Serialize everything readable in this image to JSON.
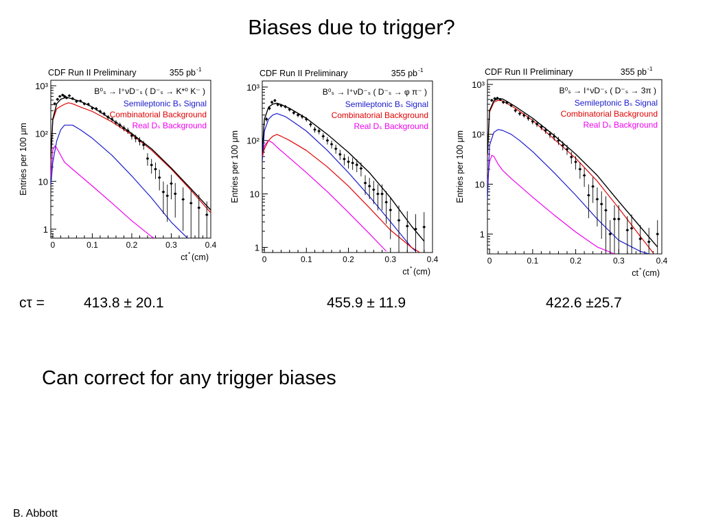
{
  "slide": {
    "title": "Biases due to trigger?",
    "ctau_label": "cτ =",
    "ctau_values": [
      "413.8 ± 20.1",
      "455.9 ± 11.9",
      "422.6 ±25.7"
    ],
    "statement": "Can correct for any trigger biases",
    "author": "B. Abbott"
  },
  "chart_data": [
    {
      "type": "scatter",
      "header_left": "CDF Run II Preliminary",
      "header_right": "355 pb",
      "header_right_sup": "-1",
      "decay": "B⁰ₛ → l⁺νD⁻ₛ ( D⁻ₛ → K*⁰ K⁻ )",
      "ylabel": "Entries per 100 μm",
      "xlabel": "ct",
      "xlabel_sup": "*",
      "xlabel_unit": "(cm)",
      "yscale": "log",
      "xlim": [
        -0.005,
        0.4
      ],
      "ylim": [
        0.65,
        1300
      ],
      "xticks": [
        0,
        0.1,
        0.2,
        0.3,
        0.4
      ],
      "xtick_labels": [
        "0",
        "0.1",
        "0.2",
        "0.3",
        "0.4"
      ],
      "yticks": [
        1,
        10,
        100,
        1000
      ],
      "ytick_labels": [
        "1",
        "10",
        "10²",
        "10³"
      ],
      "legend": [
        "Semileptonic Bₛ Signal",
        "Combinatorial Background",
        "Real Dₛ Background"
      ],
      "colors": {
        "total": "#000000",
        "signal": "#1a1acc",
        "combinatorial": "#e00000",
        "real_ds": "#ee00ee"
      },
      "series": [
        {
          "key": "total",
          "x": [
            -0.005,
            0.0,
            0.01,
            0.02,
            0.03,
            0.04,
            0.05,
            0.07,
            0.1,
            0.15,
            0.2,
            0.25,
            0.3,
            0.35,
            0.4
          ],
          "y": [
            30,
            200,
            420,
            520,
            560,
            560,
            530,
            470,
            360,
            195,
            100,
            48,
            19,
            7,
            2.5
          ]
        },
        {
          "key": "combinatorial",
          "x": [
            -0.005,
            0.0,
            0.01,
            0.02,
            0.03,
            0.04,
            0.05,
            0.07,
            0.1,
            0.15,
            0.2,
            0.25,
            0.3,
            0.35,
            0.4
          ],
          "y": [
            28,
            190,
            330,
            370,
            410,
            440,
            420,
            360,
            290,
            175,
            95,
            45,
            18,
            6.5,
            2.2
          ]
        },
        {
          "key": "signal",
          "x": [
            -0.005,
            0.0,
            0.01,
            0.02,
            0.03,
            0.05,
            0.07,
            0.1,
            0.15,
            0.2,
            0.25,
            0.3,
            0.33,
            0.35
          ],
          "y": [
            8,
            25,
            70,
            120,
            150,
            150,
            120,
            80,
            35,
            13,
            4.5,
            1.4,
            0.8,
            0.55
          ]
        },
        {
          "key": "real_ds",
          "x": [
            -0.005,
            0.0,
            0.005,
            0.01,
            0.02,
            0.03,
            0.05,
            0.1,
            0.15,
            0.2,
            0.25,
            0.28
          ],
          "y": [
            12,
            45,
            55,
            50,
            35,
            25,
            18,
            8,
            3.5,
            1.5,
            0.7,
            0.5
          ]
        }
      ],
      "points": [
        {
          "x": 0.005,
          "y": 420
        },
        {
          "x": 0.012,
          "y": 520
        },
        {
          "x": 0.018,
          "y": 600
        },
        {
          "x": 0.025,
          "y": 640
        },
        {
          "x": 0.03,
          "y": 600
        },
        {
          "x": 0.035,
          "y": 560
        },
        {
          "x": 0.042,
          "y": 620
        },
        {
          "x": 0.05,
          "y": 540
        },
        {
          "x": 0.06,
          "y": 470
        },
        {
          "x": 0.07,
          "y": 480
        },
        {
          "x": 0.08,
          "y": 420
        },
        {
          "x": 0.09,
          "y": 410
        },
        {
          "x": 0.1,
          "y": 340
        },
        {
          "x": 0.11,
          "y": 330
        },
        {
          "x": 0.12,
          "y": 290
        },
        {
          "x": 0.13,
          "y": 260
        },
        {
          "x": 0.14,
          "y": 220
        },
        {
          "x": 0.15,
          "y": 200
        },
        {
          "x": 0.16,
          "y": 170
        },
        {
          "x": 0.17,
          "y": 150
        },
        {
          "x": 0.18,
          "y": 130
        },
        {
          "x": 0.19,
          "y": 115
        },
        {
          "x": 0.2,
          "y": 90
        },
        {
          "x": 0.21,
          "y": 80
        },
        {
          "x": 0.22,
          "y": 70
        },
        {
          "x": 0.23,
          "y": 58
        },
        {
          "x": 0.24,
          "y": 30
        },
        {
          "x": 0.25,
          "y": 22
        },
        {
          "x": 0.26,
          "y": 18
        },
        {
          "x": 0.27,
          "y": 12
        },
        {
          "x": 0.28,
          "y": 6
        },
        {
          "x": 0.29,
          "y": 5
        },
        {
          "x": 0.3,
          "y": 9
        },
        {
          "x": 0.31,
          "y": 5.5
        },
        {
          "x": 0.33,
          "y": 4.2
        },
        {
          "x": 0.35,
          "y": 3.5
        },
        {
          "x": 0.37,
          "y": 2.8
        },
        {
          "x": 0.39,
          "y": 2
        }
      ]
    },
    {
      "type": "scatter",
      "header_left": "CDF Run II Preliminary",
      "header_right": "355 pb",
      "header_right_sup": "-1",
      "decay": "B⁰ₛ → l⁺νD⁻ₛ ( D⁻ₛ → φ π⁻ )",
      "ylabel": "Entries per 100 μm",
      "xlabel": "ct",
      "xlabel_sup": "*",
      "xlabel_unit": "(cm)",
      "yscale": "log",
      "xlim": [
        -0.005,
        0.4
      ],
      "ylim": [
        0.8,
        1300
      ],
      "xticks": [
        0,
        0.1,
        0.2,
        0.3,
        0.4
      ],
      "xtick_labels": [
        "0",
        "0.1",
        "0.2",
        "0.3",
        "0.4"
      ],
      "yticks": [
        1,
        10,
        100,
        1000
      ],
      "ytick_labels": [
        "1",
        "10",
        "10²",
        "10³"
      ],
      "legend": [
        "Semileptonic Bₛ Signal",
        "Combinatorial Background",
        "Real Dₛ Background"
      ],
      "colors": {
        "total": "#000000",
        "signal": "#1a1acc",
        "combinatorial": "#e00000",
        "real_ds": "#ee00ee"
      },
      "series": [
        {
          "key": "total",
          "x": [
            -0.005,
            0.0,
            0.01,
            0.02,
            0.03,
            0.04,
            0.06,
            0.1,
            0.15,
            0.2,
            0.25,
            0.3,
            0.35,
            0.38
          ],
          "y": [
            60,
            250,
            420,
            480,
            500,
            470,
            400,
            260,
            130,
            60,
            25,
            8.5,
            2.5,
            1.3
          ]
        },
        {
          "key": "combinatorial",
          "x": [
            -0.005,
            0.0,
            0.01,
            0.02,
            0.03,
            0.04,
            0.06,
            0.1,
            0.15,
            0.2,
            0.25,
            0.3,
            0.35,
            0.37
          ],
          "y": [
            50,
            70,
            100,
            120,
            130,
            120,
            100,
            65,
            32,
            14,
            5.5,
            2.1,
            1.0,
            0.8
          ]
        },
        {
          "key": "signal",
          "x": [
            -0.005,
            0.0,
            0.01,
            0.02,
            0.03,
            0.05,
            0.07,
            0.1,
            0.15,
            0.2,
            0.25,
            0.3,
            0.35,
            0.36
          ],
          "y": [
            40,
            150,
            250,
            300,
            320,
            280,
            220,
            150,
            65,
            25,
            9,
            3,
            1.0,
            0.85
          ]
        },
        {
          "key": "real_ds",
          "x": [
            -0.005,
            0.0,
            0.01,
            0.02,
            0.03,
            0.05,
            0.1,
            0.15,
            0.2,
            0.25,
            0.29
          ],
          "y": [
            45,
            80,
            100,
            90,
            75,
            55,
            25,
            11,
            4.5,
            1.8,
            0.85
          ]
        }
      ],
      "points": [
        {
          "x": 0.005,
          "y": 250
        },
        {
          "x": 0.012,
          "y": 400
        },
        {
          "x": 0.018,
          "y": 520
        },
        {
          "x": 0.025,
          "y": 560
        },
        {
          "x": 0.032,
          "y": 470
        },
        {
          "x": 0.04,
          "y": 450
        },
        {
          "x": 0.05,
          "y": 430
        },
        {
          "x": 0.06,
          "y": 380
        },
        {
          "x": 0.07,
          "y": 330
        },
        {
          "x": 0.08,
          "y": 300
        },
        {
          "x": 0.09,
          "y": 280
        },
        {
          "x": 0.1,
          "y": 250
        },
        {
          "x": 0.11,
          "y": 200
        },
        {
          "x": 0.12,
          "y": 160
        },
        {
          "x": 0.13,
          "y": 150
        },
        {
          "x": 0.14,
          "y": 120
        },
        {
          "x": 0.15,
          "y": 100
        },
        {
          "x": 0.16,
          "y": 85
        },
        {
          "x": 0.17,
          "y": 70
        },
        {
          "x": 0.18,
          "y": 55
        },
        {
          "x": 0.19,
          "y": 45
        },
        {
          "x": 0.2,
          "y": 40
        },
        {
          "x": 0.21,
          "y": 38
        },
        {
          "x": 0.22,
          "y": 35
        },
        {
          "x": 0.23,
          "y": 30
        },
        {
          "x": 0.24,
          "y": 16
        },
        {
          "x": 0.25,
          "y": 14
        },
        {
          "x": 0.26,
          "y": 12
        },
        {
          "x": 0.27,
          "y": 10
        },
        {
          "x": 0.28,
          "y": 10
        },
        {
          "x": 0.29,
          "y": 7
        },
        {
          "x": 0.3,
          "y": 5
        },
        {
          "x": 0.32,
          "y": 3.2
        },
        {
          "x": 0.34,
          "y": 2.5
        },
        {
          "x": 0.36,
          "y": 2.2
        },
        {
          "x": 0.38,
          "y": 2.4
        }
      ]
    },
    {
      "type": "scatter",
      "header_left": "CDF Run II Preliminary",
      "header_right": "355 pb",
      "header_right_sup": "-1",
      "decay": "B⁰ₛ → l⁺νD⁻ₛ ( D⁻ₛ → 3π )",
      "ylabel": "Entries per 100 μm",
      "xlabel": "ct",
      "xlabel_sup": "*",
      "xlabel_unit": "(cm)",
      "yscale": "log",
      "xlim": [
        -0.005,
        0.4
      ],
      "ylim": [
        0.4,
        1250
      ],
      "xticks": [
        0,
        0.1,
        0.2,
        0.3,
        0.4
      ],
      "xtick_labels": [
        "0",
        "0.1",
        "0.2",
        "0.3",
        "0.4"
      ],
      "yticks": [
        1,
        10,
        100,
        1000
      ],
      "ytick_labels": [
        "1",
        "10",
        "10²",
        "10³"
      ],
      "legend": [
        "Semileptonic Bₛ Signal",
        "Combinatorial Background",
        "Real Dₛ Background"
      ],
      "colors": {
        "total": "#000000",
        "signal": "#1a1acc",
        "combinatorial": "#e00000",
        "real_ds": "#ee00ee"
      },
      "series": [
        {
          "key": "total",
          "x": [
            -0.005,
            0.0,
            0.01,
            0.02,
            0.03,
            0.04,
            0.06,
            0.1,
            0.15,
            0.2,
            0.25,
            0.3,
            0.35,
            0.39
          ],
          "y": [
            40,
            300,
            470,
            520,
            510,
            460,
            360,
            210,
            95,
            40,
            15,
            4.5,
            1.4,
            0.55
          ]
        },
        {
          "key": "combinatorial",
          "x": [
            -0.005,
            0.0,
            0.01,
            0.02,
            0.03,
            0.04,
            0.06,
            0.1,
            0.15,
            0.2,
            0.25,
            0.3,
            0.35,
            0.38
          ],
          "y": [
            35,
            280,
            440,
            480,
            470,
            420,
            330,
            190,
            80,
            33,
            11.5,
            3.3,
            0.9,
            0.42
          ]
        },
        {
          "key": "signal",
          "x": [
            -0.005,
            0.0,
            0.01,
            0.02,
            0.03,
            0.05,
            0.07,
            0.1,
            0.15,
            0.2,
            0.25,
            0.3,
            0.35,
            0.37
          ],
          "y": [
            5,
            60,
            110,
            125,
            120,
            100,
            75,
            45,
            17,
            6,
            2,
            0.75,
            0.45,
            0.4
          ]
        },
        {
          "key": "real_ds",
          "x": [
            -0.005,
            0.0,
            0.005,
            0.01,
            0.02,
            0.03,
            0.05,
            0.1,
            0.15,
            0.2,
            0.25,
            0.29
          ],
          "y": [
            10,
            28,
            38,
            36,
            25,
            19,
            13,
            5.5,
            2.4,
            1.1,
            0.55,
            0.4
          ]
        }
      ],
      "points": [
        {
          "x": 0.005,
          "y": 480
        },
        {
          "x": 0.012,
          "y": 520
        },
        {
          "x": 0.018,
          "y": 530
        },
        {
          "x": 0.025,
          "y": 500
        },
        {
          "x": 0.032,
          "y": 440
        },
        {
          "x": 0.04,
          "y": 430
        },
        {
          "x": 0.05,
          "y": 380
        },
        {
          "x": 0.06,
          "y": 300
        },
        {
          "x": 0.07,
          "y": 260
        },
        {
          "x": 0.08,
          "y": 240
        },
        {
          "x": 0.09,
          "y": 210
        },
        {
          "x": 0.1,
          "y": 180
        },
        {
          "x": 0.11,
          "y": 160
        },
        {
          "x": 0.12,
          "y": 140
        },
        {
          "x": 0.13,
          "y": 120
        },
        {
          "x": 0.14,
          "y": 100
        },
        {
          "x": 0.15,
          "y": 90
        },
        {
          "x": 0.16,
          "y": 75
        },
        {
          "x": 0.17,
          "y": 60
        },
        {
          "x": 0.18,
          "y": 50
        },
        {
          "x": 0.19,
          "y": 35
        },
        {
          "x": 0.2,
          "y": 28
        },
        {
          "x": 0.21,
          "y": 20
        },
        {
          "x": 0.22,
          "y": 15
        },
        {
          "x": 0.23,
          "y": 6
        },
        {
          "x": 0.24,
          "y": 9
        },
        {
          "x": 0.25,
          "y": 5
        },
        {
          "x": 0.26,
          "y": 4
        },
        {
          "x": 0.27,
          "y": 3
        },
        {
          "x": 0.28,
          "y": 1
        },
        {
          "x": 0.29,
          "y": 2
        },
        {
          "x": 0.3,
          "y": 2
        },
        {
          "x": 0.32,
          "y": 1.2
        },
        {
          "x": 0.33,
          "y": 1.3
        },
        {
          "x": 0.35,
          "y": 0.8
        },
        {
          "x": 0.37,
          "y": 0.7
        },
        {
          "x": 0.39,
          "y": 1
        }
      ]
    }
  ]
}
